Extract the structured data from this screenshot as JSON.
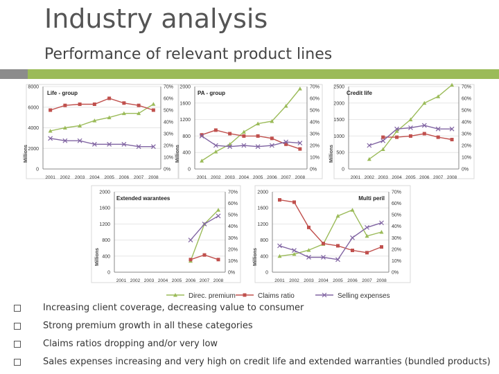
{
  "slide": {
    "title": "Industry analysis",
    "subtitle": "Performance of relevant product lines"
  },
  "colors": {
    "accent_bar": "#9bbb59",
    "accent_mark": "#8c8c8c",
    "premium": "#9bbb59",
    "claims": "#c0504d",
    "selling": "#8064a2"
  },
  "legend": [
    {
      "label": "Direc. premium",
      "color": "#9bbb59",
      "marker": "triangle"
    },
    {
      "label": "Claims ratio",
      "color": "#c0504d",
      "marker": "square"
    },
    {
      "label": "Selling expenses",
      "color": "#8064a2",
      "marker": "x"
    }
  ],
  "bullets": [
    "Increasing client coverage, decreasing value to consumer",
    "Strong premium growth in all these categories",
    "Claims ratios dropping and/or very low",
    "Sales expenses increasing and very high on credit life and extended warranties (bundled products)"
  ],
  "chart_data": [
    {
      "type": "line",
      "title": "Life - group",
      "x": [
        "2001",
        "2002",
        "2003",
        "2004",
        "2005",
        "2006",
        "2007",
        "2008"
      ],
      "ylabel": "Millions",
      "ylim": [
        0,
        8000
      ],
      "yticks": [
        "0",
        "2000",
        "4000",
        "6000",
        "8000"
      ],
      "y2lim": [
        0,
        70
      ],
      "y2ticks": [
        "0%",
        "10%",
        "20%",
        "30%",
        "40%",
        "50%",
        "60%",
        "70%"
      ],
      "series": [
        {
          "name": "Direc. premium",
          "axis": "left",
          "values": [
            3700,
            4000,
            4200,
            4700,
            5000,
            5400,
            5400,
            6300
          ]
        },
        {
          "name": "Claims ratio",
          "axis": "right",
          "values": [
            50,
            54,
            55,
            55,
            60,
            56,
            54,
            50
          ]
        },
        {
          "name": "Selling expenses",
          "axis": "right",
          "values": [
            26,
            24,
            24,
            21,
            21,
            21,
            19,
            19
          ]
        }
      ]
    },
    {
      "type": "line",
      "title": "PA - group",
      "x": [
        "2001",
        "2002",
        "2003",
        "2004",
        "2005",
        "2006",
        "2007",
        "2008"
      ],
      "ylabel": "Millions",
      "ylim": [
        0,
        2000
      ],
      "yticks": [
        "0",
        "400",
        "800",
        "1200",
        "1600",
        "2000"
      ],
      "y2lim": [
        0,
        70
      ],
      "y2ticks": [
        "0%",
        "10%",
        "20%",
        "30%",
        "40%",
        "50%",
        "60%",
        "70%"
      ],
      "series": [
        {
          "name": "Direc. premium",
          "axis": "left",
          "values": [
            200,
            420,
            600,
            900,
            1100,
            1160,
            1530,
            1950
          ]
        },
        {
          "name": "Claims ratio",
          "axis": "right",
          "values": [
            29,
            33,
            30,
            28,
            28,
            26,
            21,
            17
          ]
        },
        {
          "name": "Selling expenses",
          "axis": "right",
          "values": [
            28,
            20,
            19,
            20,
            19,
            20,
            23,
            22
          ]
        }
      ]
    },
    {
      "type": "line",
      "title": "Credit life",
      "x": [
        "2001",
        "2002",
        "2003",
        "2004",
        "2005",
        "2006",
        "2007",
        "2008"
      ],
      "ylabel": "Millions",
      "ylim": [
        0,
        2500
      ],
      "yticks": [
        "0",
        "500",
        "1000",
        "1500",
        "2000",
        "2500"
      ],
      "y2lim": [
        0,
        70
      ],
      "y2ticks": [
        "0%",
        "10%",
        "20%",
        "30%",
        "40%",
        "50%",
        "60%",
        "70%"
      ],
      "series": [
        {
          "name": "Direc. premium",
          "axis": "left",
          "values": [
            null,
            300,
            600,
            1150,
            1500,
            2000,
            2200,
            2550
          ]
        },
        {
          "name": "Claims ratio",
          "axis": "right",
          "values": [
            null,
            null,
            27,
            27,
            28,
            30,
            27,
            25
          ]
        },
        {
          "name": "Selling expenses",
          "axis": "right",
          "values": [
            null,
            20,
            24,
            34,
            35,
            37,
            34,
            34
          ]
        }
      ]
    },
    {
      "type": "line",
      "title": "Extended warantees",
      "x": [
        "2001",
        "2002",
        "2003",
        "2004",
        "2005",
        "2006",
        "2007",
        "2008"
      ],
      "ylabel": "Millions",
      "ylim": [
        0,
        2000
      ],
      "yticks": [
        "0",
        "400",
        "800",
        "1200",
        "1600",
        "2000"
      ],
      "y2lim": [
        0,
        70
      ],
      "y2ticks": [
        "0%",
        "10%",
        "20%",
        "30%",
        "40%",
        "50%",
        "60%",
        "70%"
      ],
      "series": [
        {
          "name": "Direc. premium",
          "axis": "left",
          "values": [
            null,
            null,
            null,
            null,
            null,
            280,
            1200,
            1550
          ]
        },
        {
          "name": "Claims ratio",
          "axis": "right",
          "values": [
            null,
            null,
            null,
            null,
            null,
            11,
            15,
            11
          ]
        },
        {
          "name": "Selling expenses",
          "axis": "right",
          "values": [
            null,
            null,
            null,
            null,
            null,
            28,
            42,
            49
          ]
        }
      ]
    },
    {
      "type": "line",
      "title": "Multi peril",
      "x": [
        "2001",
        "2002",
        "2003",
        "2004",
        "2005",
        "2006",
        "2007",
        "2008"
      ],
      "ylabel": "Millions",
      "ylim": [
        0,
        2000
      ],
      "yticks": [
        "0",
        "400",
        "800",
        "1200",
        "1600",
        "2000"
      ],
      "y2lim": [
        0,
        70
      ],
      "y2ticks": [
        "0%",
        "10%",
        "20%",
        "30%",
        "40%",
        "50%",
        "60%",
        "70%"
      ],
      "series": [
        {
          "name": "Direc. premium",
          "axis": "left",
          "values": [
            400,
            450,
            550,
            700,
            1400,
            1550,
            900,
            1000
          ]
        },
        {
          "name": "Claims ratio",
          "axis": "right",
          "values": [
            63,
            61,
            39,
            25,
            23,
            19,
            17,
            22
          ]
        },
        {
          "name": "Selling expenses",
          "axis": "right",
          "values": [
            23,
            19,
            13,
            13,
            11,
            30,
            39,
            43
          ]
        }
      ]
    }
  ]
}
